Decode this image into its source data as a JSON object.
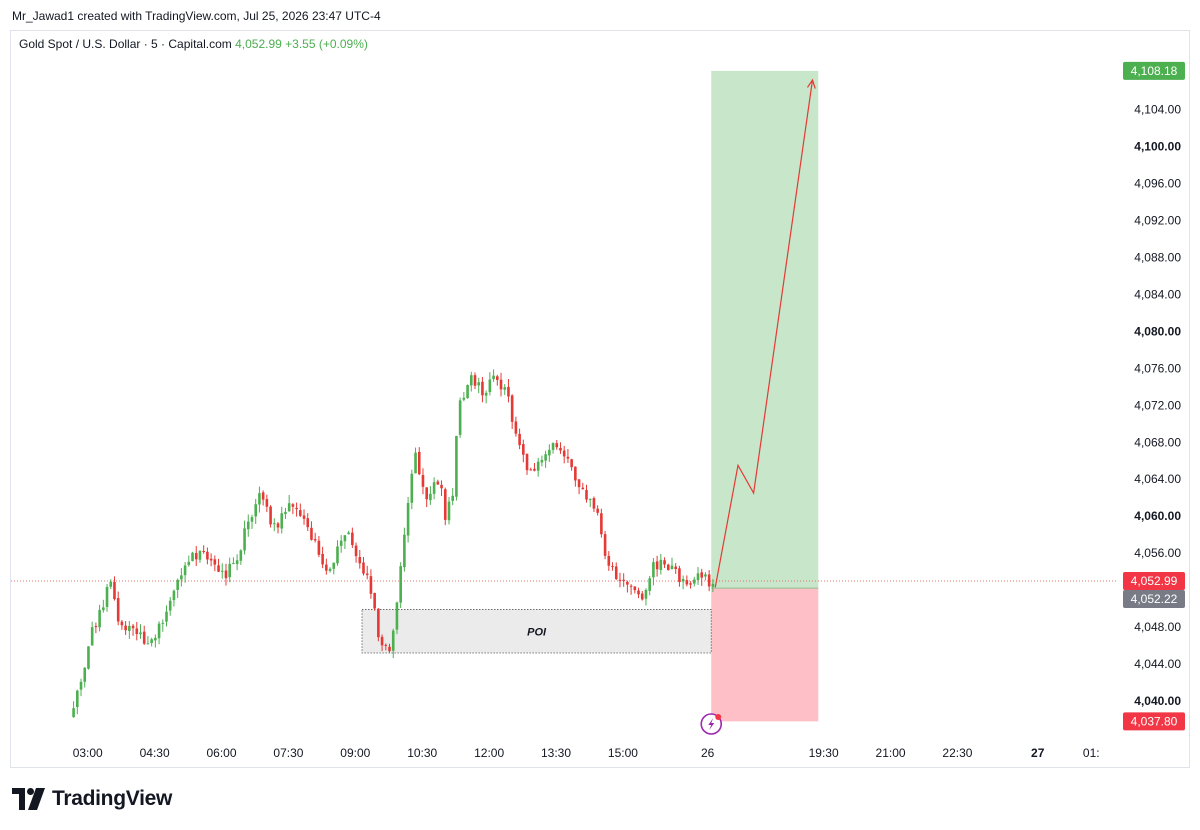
{
  "header": {
    "credit": "Mr_Jawad1 created with TradingView.com, Jul 25, 2026 23:47 UTC-4"
  },
  "legend": {
    "symbol": "Gold Spot / U.S. Dollar · 5 · Capital.com",
    "last": "4,052.99",
    "change": "+3.55 (+0.09%)"
  },
  "brand": {
    "name": "TradingView",
    "icon": "tradingview-logo-icon"
  },
  "colors": {
    "up": "#4caf50",
    "down": "#e53935",
    "profit_zone": "#c8e6c9",
    "loss_zone": "#ffbfc6",
    "poi_zone": "#ebebeb",
    "arrow": "#e53935",
    "tag_green": "#4caf50",
    "tag_red": "#f23645",
    "tag_gray": "#787b86"
  },
  "chart_data": {
    "type": "candlestick",
    "title": "",
    "xlabel": "",
    "ylabel": "",
    "ylim": [
      4036.0,
      4112.5
    ],
    "x_ticks": [
      {
        "label": "03:00",
        "hour": 3.0,
        "bold": false
      },
      {
        "label": "04:30",
        "hour": 4.5,
        "bold": false
      },
      {
        "label": "06:00",
        "hour": 6.0,
        "bold": false
      },
      {
        "label": "07:30",
        "hour": 7.5,
        "bold": false
      },
      {
        "label": "09:00",
        "hour": 9.0,
        "bold": false
      },
      {
        "label": "10:30",
        "hour": 10.5,
        "bold": false
      },
      {
        "label": "12:00",
        "hour": 12.0,
        "bold": false
      },
      {
        "label": "13:30",
        "hour": 13.5,
        "bold": false
      },
      {
        "label": "15:00",
        "hour": 15.0,
        "bold": false
      },
      {
        "label": "26",
        "hour": 16.9,
        "bold": false
      },
      {
        "label": "19:30",
        "hour": 19.5,
        "bold": false
      },
      {
        "label": "21:00",
        "hour": 21.0,
        "bold": false
      },
      {
        "label": "22:30",
        "hour": 22.5,
        "bold": false
      },
      {
        "label": "27",
        "hour": 24.3,
        "bold": true
      },
      {
        "label": "01:",
        "hour": 25.5,
        "bold": false
      }
    ],
    "y_ticks": [
      {
        "label": "4,104.00",
        "value": 4104,
        "bold": false
      },
      {
        "label": "4,100.00",
        "value": 4100,
        "bold": true
      },
      {
        "label": "4,096.00",
        "value": 4096,
        "bold": false
      },
      {
        "label": "4,092.00",
        "value": 4092,
        "bold": false
      },
      {
        "label": "4,088.00",
        "value": 4088,
        "bold": false
      },
      {
        "label": "4,084.00",
        "value": 4084,
        "bold": false
      },
      {
        "label": "4,080.00",
        "value": 4080,
        "bold": true
      },
      {
        "label": "4,076.00",
        "value": 4076,
        "bold": false
      },
      {
        "label": "4,072.00",
        "value": 4072,
        "bold": false
      },
      {
        "label": "4,068.00",
        "value": 4068,
        "bold": false
      },
      {
        "label": "4,064.00",
        "value": 4064,
        "bold": false
      },
      {
        "label": "4,060.00",
        "value": 4060,
        "bold": true
      },
      {
        "label": "4,056.00",
        "value": 4056,
        "bold": false
      },
      {
        "label": "4,048.00",
        "value": 4048,
        "bold": false
      },
      {
        "label": "4,044.00",
        "value": 4044,
        "bold": false
      },
      {
        "label": "4,040.00",
        "value": 4040,
        "bold": true
      }
    ],
    "price_tags": [
      {
        "label": "4,108.18",
        "value": 4108.18,
        "color": "#4caf50"
      },
      {
        "label": "4,052.99",
        "value": 4052.99,
        "color": "#f23645"
      },
      {
        "label": "4,052.22",
        "value": 4052.22,
        "color": "#787b86"
      },
      {
        "label": "4,037.80",
        "value": 4037.8,
        "color": "#f23645"
      }
    ],
    "current_price": 4052.99,
    "candle_path": [
      [
        2.6,
        4038.3
      ],
      [
        2.95,
        4043.2
      ],
      [
        3.05,
        4047.0
      ],
      [
        3.3,
        4049.8
      ],
      [
        3.5,
        4053.2
      ],
      [
        3.7,
        4048.5
      ],
      [
        4.0,
        4047.6
      ],
      [
        4.3,
        4046.5
      ],
      [
        4.5,
        4047.3
      ],
      [
        4.8,
        4049.9
      ],
      [
        5.1,
        4053.9
      ],
      [
        5.5,
        4056.3
      ],
      [
        5.8,
        4055.0
      ],
      [
        6.1,
        4053.5
      ],
      [
        6.4,
        4056.3
      ],
      [
        6.6,
        4059.3
      ],
      [
        6.9,
        4062.5
      ],
      [
        7.2,
        4058.4
      ],
      [
        7.5,
        4061.3
      ],
      [
        7.8,
        4060.2
      ],
      [
        8.1,
        4057.1
      ],
      [
        8.3,
        4053.8
      ],
      [
        8.6,
        4056.3
      ],
      [
        8.8,
        4058.9
      ],
      [
        9.1,
        4055.1
      ],
      [
        9.3,
        4053.4
      ],
      [
        9.55,
        4046.2
      ],
      [
        9.8,
        4045.5
      ],
      [
        10.0,
        4054.1
      ],
      [
        10.2,
        4062.3
      ],
      [
        10.35,
        4066.8
      ],
      [
        10.6,
        4061.4
      ],
      [
        10.9,
        4064.4
      ],
      [
        11.0,
        4059.6
      ],
      [
        11.2,
        4062.5
      ],
      [
        11.3,
        4071.8
      ],
      [
        11.6,
        4075.2
      ],
      [
        11.9,
        4073.3
      ],
      [
        12.1,
        4075.6
      ],
      [
        12.4,
        4073.2
      ],
      [
        12.6,
        4068.5
      ],
      [
        12.9,
        4064.8
      ],
      [
        13.2,
        4066.4
      ],
      [
        13.5,
        4067.6
      ],
      [
        13.8,
        4065.6
      ],
      [
        14.1,
        4062.9
      ],
      [
        14.4,
        4060.6
      ],
      [
        14.6,
        4055.3
      ],
      [
        14.9,
        4053.1
      ],
      [
        15.2,
        4052.7
      ],
      [
        15.4,
        4050.6
      ],
      [
        15.7,
        4054.9
      ],
      [
        16.0,
        4054.8
      ],
      [
        16.4,
        4052.7
      ],
      [
        16.8,
        4053.5
      ],
      [
        17.05,
        4052.5
      ]
    ],
    "overlays": {
      "poi": {
        "label": "POI",
        "x0": 9.15,
        "x1": 16.98,
        "top": 4049.9,
        "bottom": 4045.2
      },
      "position": {
        "x0": 16.98,
        "x1": 19.38,
        "entry": 4052.22,
        "target": 4108.18,
        "stop": 4037.8
      },
      "projection_path": [
        [
          17.07,
          4052.3
        ],
        [
          17.58,
          4065.5
        ],
        [
          17.93,
          4062.5
        ],
        [
          19.25,
          4107.2
        ]
      ]
    }
  }
}
